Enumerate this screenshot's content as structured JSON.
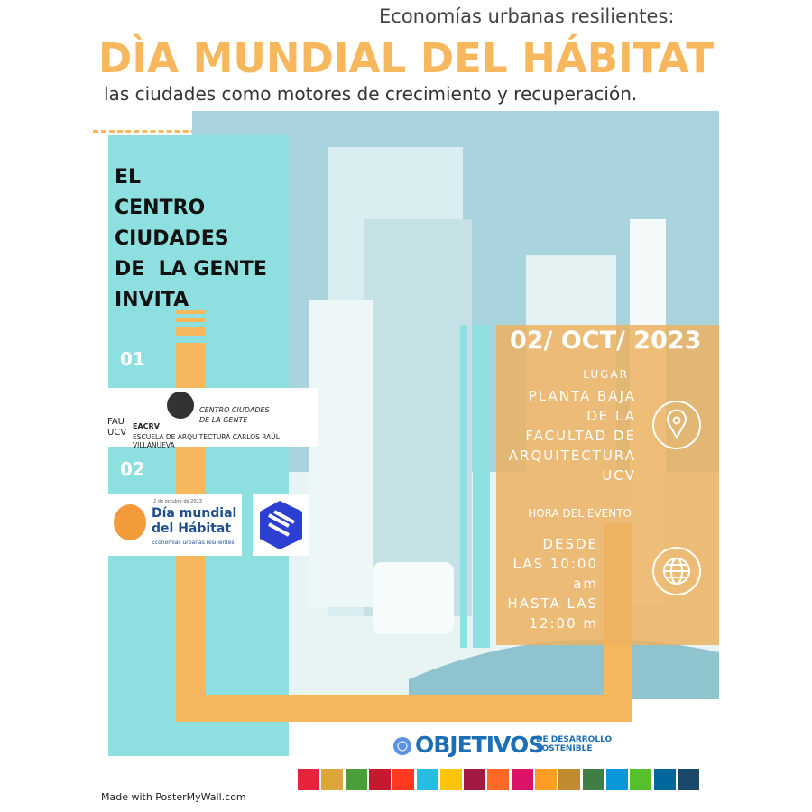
{
  "header": {
    "kicker": "Economías urbanas resilientes:",
    "title": "DÌA MUNDIAL DEL HÁBITAT",
    "subtitle": "las ciudades como motores de crecimiento y recuperación."
  },
  "invite": {
    "lines": [
      "EL",
      "CENTRO",
      "CIUDADES",
      "DE  LA GENTE",
      "INVITA"
    ]
  },
  "sections": [
    {
      "number": "01",
      "logo": {
        "fau": "FAU",
        "ucv": "UCV",
        "eacrv": "EACRV",
        "centro": "CENTRO CIUDADES",
        "gente": "DE LA GENTE",
        "school": "ESCUELA DE ARQUITECTURA CARLOS RAÚL VILLANUEVA"
      }
    },
    {
      "number": "02",
      "logo": {
        "date": "2 de octubre de 2023",
        "title_1": "Día mundial",
        "title_2": "del Hábitat",
        "tagline": "Economías urbanas resilientes"
      }
    }
  ],
  "event": {
    "date": "02/ OCT/ 2023",
    "place_label": "LUGAR",
    "place_lines": [
      "PLANTA BAJA",
      "DE LA",
      "FACULTAD DE",
      "ARQUITECTURA",
      "UCV"
    ],
    "time_label": "HORA DEL EVENTO",
    "time_lines": [
      "DESDE",
      "LAS 10:00",
      "am",
      "HASTA LAS",
      "12:00 m"
    ]
  },
  "sdg": {
    "brand": "OBJETIVOS",
    "line_1": "DE DESARROLLO",
    "line_2": "SOSTENIBLE"
  },
  "footer": {
    "credit": "Made with PosterMyWall.com"
  }
}
